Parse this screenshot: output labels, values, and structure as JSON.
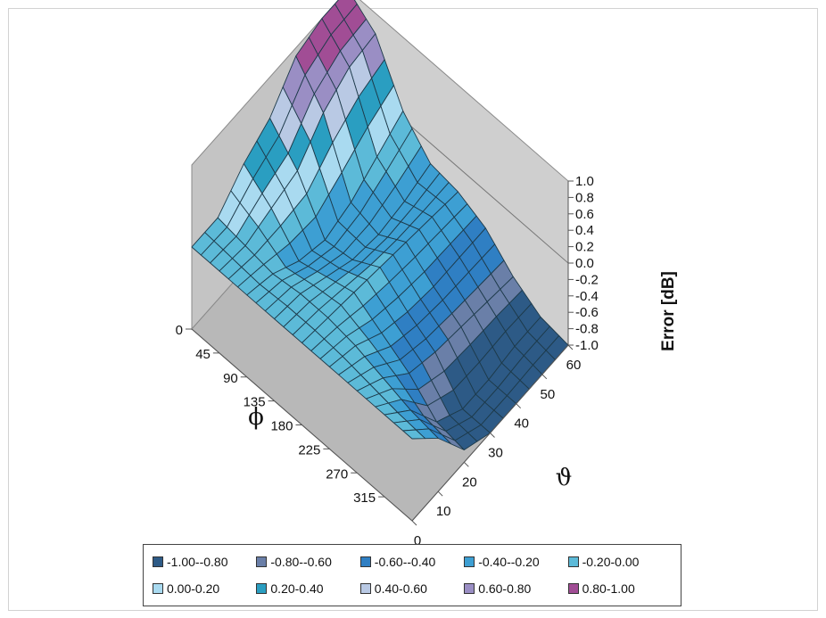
{
  "chart_data": {
    "type": "surface",
    "zlabel": "Error [dB]",
    "xlabel": "ϕ",
    "ylabel": "ϑ",
    "phi_ticks": [
      "0",
      "45",
      "90",
      "135",
      "180",
      "225",
      "270",
      "315"
    ],
    "theta_ticks": [
      "0",
      "10",
      "20",
      "30",
      "40",
      "50",
      "60"
    ],
    "z_ticks": [
      "-1.0",
      "-0.8",
      "-0.6",
      "-0.4",
      "-0.2",
      "0.0",
      "0.2",
      "0.4",
      "0.6",
      "0.8",
      "1.0"
    ],
    "zlim": [
      -1.0,
      1.0
    ],
    "phi_range": [
      0,
      360
    ],
    "theta_range": [
      0,
      60
    ],
    "legend": [
      {
        "label": "-1.00--0.80",
        "color": "#2d5a86"
      },
      {
        "label": "-0.80--0.60",
        "color": "#6a7fa8"
      },
      {
        "label": "-0.60--0.40",
        "color": "#2f7fc3"
      },
      {
        "label": "-0.40--0.20",
        "color": "#3d9fd3"
      },
      {
        "label": "-0.20-0.00",
        "color": "#5cbad8"
      },
      {
        "label": "0.00-0.20",
        "color": "#a9daf0"
      },
      {
        "label": "0.20-0.40",
        "color": "#2a9ec1"
      },
      {
        "label": "0.40-0.60",
        "color": "#b9c9e4"
      },
      {
        "label": "0.60-0.80",
        "color": "#9a8ec4"
      },
      {
        "label": "0.80-1.00",
        "color": "#a14d95"
      }
    ],
    "surface_phi": [
      0,
      45,
      90,
      135,
      180,
      225,
      270,
      315,
      360
    ],
    "surface_theta": [
      0,
      10,
      20,
      30,
      40,
      50,
      60
    ],
    "surface_z": [
      [
        0.0,
        0.0,
        0.3,
        0.5,
        0.9,
        1.0,
        1.0
      ],
      [
        0.0,
        -0.05,
        0.05,
        0.15,
        0.5,
        0.7,
        0.75
      ],
      [
        0.0,
        -0.1,
        -0.3,
        -0.4,
        -0.3,
        -0.1,
        0.1
      ],
      [
        0.0,
        -0.05,
        -0.2,
        -0.35,
        -0.4,
        -0.35,
        -0.25
      ],
      [
        0.0,
        -0.05,
        -0.1,
        -0.15,
        -0.2,
        -0.25,
        -0.3
      ],
      [
        0.0,
        -0.1,
        -0.3,
        -0.4,
        -0.45,
        -0.45,
        -0.45
      ],
      [
        0.0,
        -0.2,
        -0.5,
        -0.6,
        -0.65,
        -0.7,
        -0.75
      ],
      [
        0.0,
        -0.3,
        -0.8,
        -1.0,
        -1.0,
        -0.95,
        -0.95
      ],
      [
        0.0,
        -0.35,
        -0.85,
        -1.0,
        -1.0,
        -1.0,
        -1.0
      ]
    ]
  }
}
